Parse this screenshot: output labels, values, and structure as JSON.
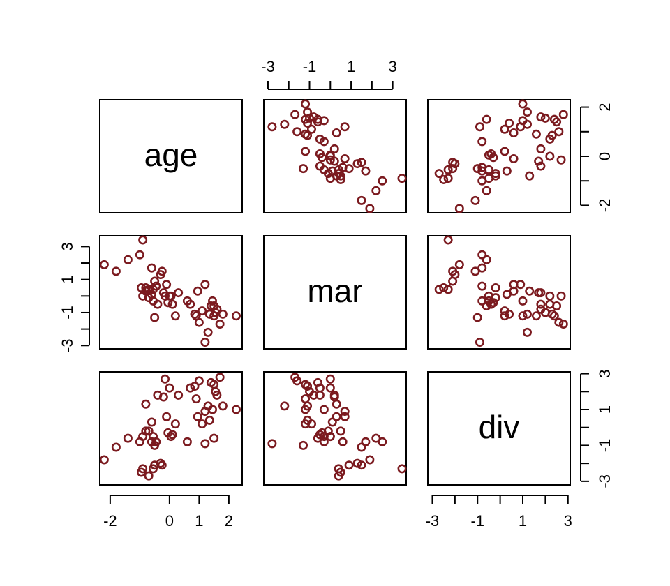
{
  "chart_data": {
    "type": "scatter",
    "subtype": "pairs-matrix",
    "title": "",
    "variables": [
      "age",
      "mar",
      "div"
    ],
    "point_color": "#7b1a1f",
    "point_shape": "open-circle",
    "axes": {
      "age": {
        "ticks": [
          -2,
          0,
          1,
          2
        ],
        "tick_labels": [
          "-2",
          "0",
          "1",
          "2"
        ],
        "range": [
          -2.35,
          2.45
        ],
        "sides": [
          "bottom"
        ]
      },
      "mar": {
        "ticks": [
          -3,
          -2,
          -1,
          0,
          1,
          2,
          3
        ],
        "tick_labels": [
          "-3",
          "-1",
          "1",
          "3"
        ],
        "labeled_ticks": [
          -3,
          -1,
          1,
          3
        ],
        "range": [
          -3.2,
          3.65
        ],
        "sides": [
          "top",
          "left"
        ]
      },
      "div": {
        "ticks": [
          -3,
          -2,
          -1,
          0,
          1,
          2,
          3
        ],
        "tick_labels": [
          "-3",
          "-1",
          "1",
          "3"
        ],
        "labeled_ticks": [
          -3,
          -1,
          1,
          3
        ],
        "range": [
          -3.2,
          3.1
        ],
        "sides": [
          "bottom",
          "right"
        ]
      }
    },
    "right_axis_top_row": {
      "ticks": [
        -2,
        -1,
        0,
        1,
        2
      ],
      "tick_labels": [
        "-2",
        "0",
        "2"
      ],
      "labeled_ticks": [
        -2,
        0,
        2
      ],
      "range": [
        -2.3,
        2.3
      ]
    },
    "points": {
      "age": [
        -2.2,
        -1.8,
        -0.9,
        -1.4,
        -1.0,
        -0.6,
        -0.5,
        -0.55,
        -0.3,
        -0.25,
        -0.7,
        -0.6,
        -0.4,
        -0.2,
        -0.15,
        -0.1,
        0.0,
        0.05,
        0.1,
        0.2,
        0.3,
        -0.5,
        -0.8,
        0.7,
        0.85,
        0.9,
        1.0,
        1.1,
        1.2,
        1.3,
        1.35,
        1.4,
        1.45,
        1.5,
        1.55,
        1.6,
        1.7,
        1.8,
        2.25,
        -0.95,
        -0.7,
        -0.55,
        -0.45,
        0.6,
        -0.9,
        -0.8,
        -0.05,
        0.95,
        1.2,
        1.5
      ],
      "mar": [
        1.9,
        1.5,
        3.6,
        2.2,
        2.5,
        1.7,
        0.9,
        0.4,
        1.3,
        1.5,
        0.4,
        0.1,
        -0.5,
        0.2,
        0.0,
        0.7,
        0.0,
        0.0,
        -0.5,
        -1.2,
        0.2,
        -1.3,
        0.3,
        -0.5,
        -1.1,
        -1.2,
        -1.6,
        -0.9,
        -2.8,
        -2.2,
        -1.1,
        -0.6,
        -0.3,
        -1.2,
        -1.0,
        -0.8,
        -1.7,
        -1.1,
        -1.2,
        0.5,
        -0.1,
        -0.3,
        0.6,
        -0.3,
        0.0,
        0.5,
        -0.4,
        0.3,
        0.7,
        -0.6
      ],
      "div": [
        -1.8,
        -1.1,
        -2.3,
        -0.6,
        -0.8,
        -0.8,
        -2.1,
        -2.3,
        -2.0,
        -2.1,
        -2.7,
        0.3,
        1.8,
        1.7,
        2.7,
        0.6,
        2.2,
        -0.5,
        -0.4,
        0.2,
        1.8,
        -1.0,
        1.3,
        2.2,
        2.3,
        1.6,
        2.6,
        0.2,
        -0.9,
        1.2,
        0.4,
        2.5,
        1.0,
        2.4,
        2.0,
        1.8,
        2.8,
        1.2,
        1.0,
        -2.5,
        -0.2,
        -0.5,
        -0.8,
        -0.8,
        -0.5,
        -0.2,
        -0.3,
        0.6,
        0.9,
        -0.6
      ]
    }
  },
  "diagonal_labels": [
    "age",
    "mar",
    "div"
  ]
}
